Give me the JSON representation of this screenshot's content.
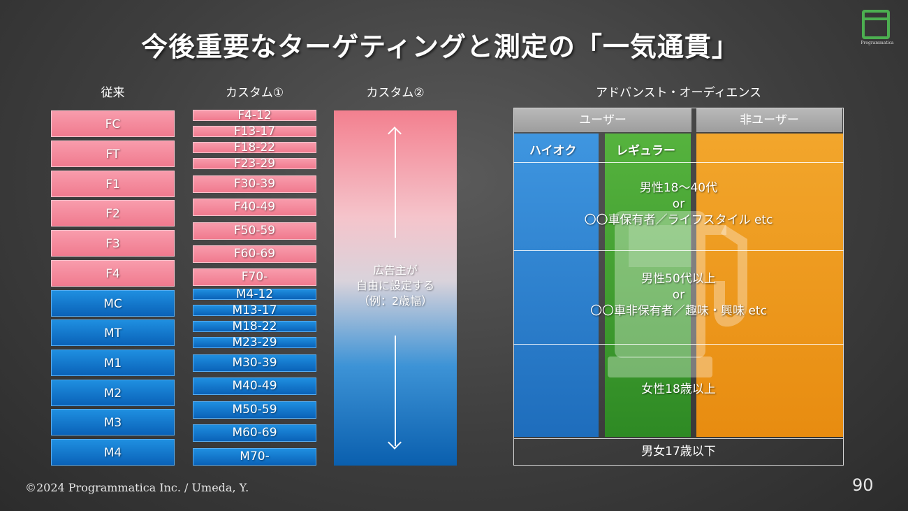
{
  "title": "今後重要なターゲティングと測定の「一気通貫」",
  "logo_name": "Programmatica",
  "columns": {
    "traditional": {
      "header": "従来",
      "items": [
        "FC",
        "FT",
        "F1",
        "F2",
        "F3",
        "F4",
        "MC",
        "MT",
        "M1",
        "M2",
        "M3",
        "M4"
      ]
    },
    "custom1": {
      "header": "カスタム①",
      "items": [
        "F4-12",
        "F13-17",
        "F18-22",
        "F23-29",
        "F30-39",
        "F40-49",
        "F50-59",
        "F60-69",
        "F70-",
        "M4-12",
        "M13-17",
        "M18-22",
        "M23-29",
        "M30-39",
        "M40-49",
        "M50-59",
        "M60-69",
        "M70-"
      ]
    },
    "custom2": {
      "header": "カスタム②",
      "lines": [
        "広告主が",
        "自由に設定する",
        "（例：2歳幅）"
      ]
    },
    "advanced": {
      "header": "アドバンスト・オーディエンス",
      "tabs": {
        "user": "ユーザー",
        "non_user": "非ユーザー"
      },
      "segments": {
        "high_octane": "ハイオク",
        "regular": "レギュラー"
      },
      "rows": [
        [
          "男性18～40代",
          "or",
          "〇〇車保有者／ライフスタイル etc"
        ],
        [
          "男性50代以上",
          "or",
          "〇〇車非保有者／趣味・興味 etc"
        ],
        [
          "女性18歳以上"
        ]
      ],
      "bottom": "男女17歳以下"
    }
  },
  "footer": "©2024  Programmatica Inc. / Umeda, Y.",
  "page_number": "90",
  "colors": {
    "female": "#f07a8e",
    "male": "#0a62b8",
    "high_octane": "#2b7fd0",
    "regular": "#3f9a2a",
    "non_user": "#f0a020",
    "logo": "#4caf50"
  }
}
